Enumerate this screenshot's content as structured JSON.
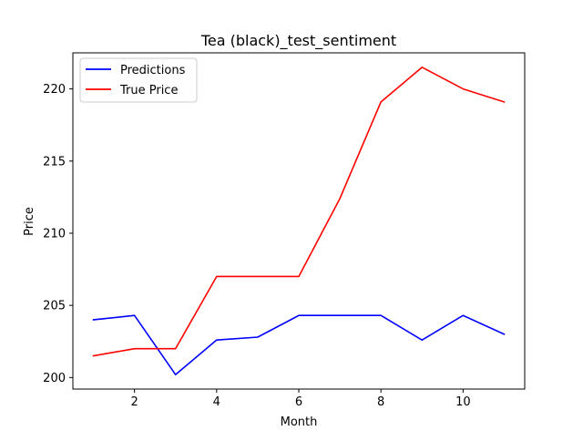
{
  "chart_data": {
    "type": "line",
    "title": "Tea (black)_test_sentiment",
    "xlabel": "Month",
    "ylabel": "Price",
    "x": [
      1,
      2,
      3,
      4,
      5,
      6,
      7,
      8,
      9,
      10,
      11
    ],
    "xlim": [
      0.5,
      11.5
    ],
    "ylim": [
      199.2,
      222.5
    ],
    "xticks": [
      2,
      4,
      6,
      8,
      10
    ],
    "yticks": [
      200,
      205,
      210,
      215,
      220
    ],
    "grid": false,
    "legend_position": "top-left",
    "series": [
      {
        "name": "Predictions",
        "color": "#0000ff",
        "values": [
          204.0,
          204.3,
          200.2,
          202.6,
          202.8,
          204.3,
          204.3,
          204.3,
          202.6,
          204.3,
          203.0
        ]
      },
      {
        "name": "True Price",
        "color": "#ff0000",
        "values": [
          201.5,
          202.0,
          202.0,
          207.0,
          207.0,
          207.0,
          212.4,
          219.1,
          221.5,
          220.0,
          219.1
        ]
      }
    ]
  }
}
